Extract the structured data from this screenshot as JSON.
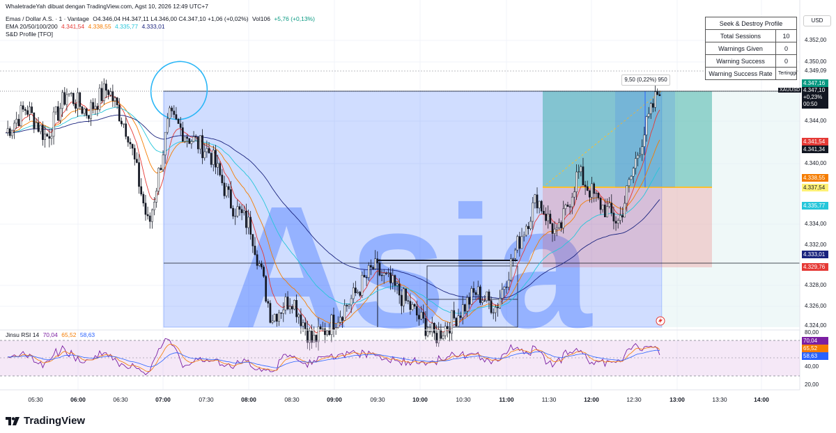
{
  "header": {
    "attribution": "WhaletradeYah dibuat dengan TradingView.com, Agst 10, 2026 12:49 UTC+7",
    "symbol_line": "Emas / Dollar A.S. · 1 · Vantage",
    "ohlc": "O4.346,04  H4.347,11  L4.346,00  C4.347,10  +1,06 (+0,02%)",
    "volume": "Vol106",
    "volume_change": "+5,76 (+0,13%)",
    "ema_label": "EMA 20/50/100/200",
    "ema_values": [
      "4.341,54",
      "4.338,55",
      "4.335,77",
      "4.333,01"
    ],
    "sd_profile": "S&D Profile [TFO]"
  },
  "sd_table": {
    "title": "Seek & Destroy Profile",
    "rows": [
      {
        "label": "Total Sessions",
        "value": "10"
      },
      {
        "label": "Warnings Given",
        "value": "0"
      },
      {
        "label": "Warning Success",
        "value": "0"
      },
      {
        "label": "Warning Success Rate",
        "value": "Tertinggi"
      }
    ]
  },
  "currency_button": "USD",
  "watermark": "Asia",
  "measure_label": "9,50 (0,22%) 950",
  "symbol_tag": "XAUUSD",
  "price_axis": {
    "labels": [
      "4.352,00",
      "4.350,00",
      "4.349,09",
      "4.347,16",
      "4.344,00",
      "4.341,54",
      "4.341,34",
      "4.340,00",
      "4.338,55",
      "4.337,54",
      "4.335,77",
      "4.334,00",
      "4.333,01",
      "4.332,00",
      "4.329,76",
      "4.328,00",
      "4.326,00",
      "4.324,00"
    ],
    "current_price": "4.347,10",
    "current_change": "+0,23%",
    "countdown": "00:50",
    "colors": {
      "current": "#131722",
      "ema20": "#e53935",
      "ema50": "#f57c00",
      "ema100": "#26c6da",
      "ema200": "#1a237e",
      "teal": "#089981",
      "yellow": "#fff176",
      "stop": "#e53935"
    }
  },
  "rsi": {
    "label": "Jinsu RSI 14",
    "values": [
      "70,04",
      "65,52",
      "58,63"
    ],
    "axis": [
      "80,00",
      "40,00",
      "20,00"
    ]
  },
  "time_axis": [
    "05:30",
    "06:00",
    "06:30",
    "07:00",
    "07:30",
    "08:00",
    "08:30",
    "09:00",
    "09:30",
    "10:00",
    "10:30",
    "11:00",
    "11:30",
    "12:00",
    "12:30",
    "13:00",
    "13:30",
    "14:00"
  ],
  "footer_logo": "TradingView",
  "chart_data": {
    "type": "line",
    "title": "Emas / Dollar A.S. · 1 · Vantage",
    "xlabel": "",
    "ylabel": "",
    "ylim": [
      4323,
      4353
    ],
    "x": [
      "05:20",
      "05:30",
      "05:45",
      "06:00",
      "06:15",
      "06:30",
      "06:45",
      "07:00",
      "07:05",
      "07:15",
      "07:30",
      "07:45",
      "08:00",
      "08:15",
      "08:30",
      "08:45",
      "09:00",
      "09:15",
      "09:30",
      "09:45",
      "10:00",
      "10:15",
      "10:30",
      "10:45",
      "11:00",
      "11:15",
      "11:30",
      "11:45",
      "12:00",
      "12:15",
      "12:30",
      "12:40",
      "12:48"
    ],
    "series": [
      {
        "name": "XAUUSD",
        "values": [
          4342.5,
          4345.0,
          4342.0,
          4346.5,
          4344.5,
          4347.0,
          4342.5,
          4333.0,
          4344.0,
          4342.0,
          4340.5,
          4335.5,
          4333.0,
          4324.0,
          4326.0,
          4321.5,
          4323.5,
          4326.0,
          4329.0,
          4327.0,
          4324.5,
          4322.0,
          4324.0,
          4326.5,
          4325.0,
          4331.0,
          4336.0,
          4332.0,
          4338.5,
          4335.5,
          4333.5,
          4341.0,
          4347.1
        ]
      }
    ]
  }
}
